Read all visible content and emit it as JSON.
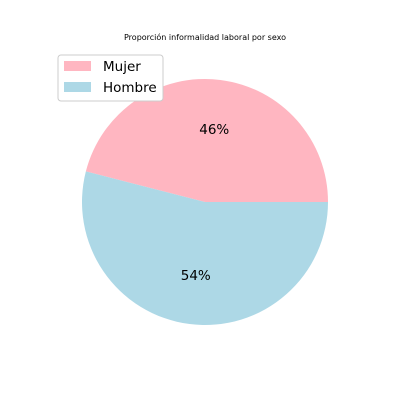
{
  "chart_data": {
    "type": "pie",
    "title": "Proporción informalidad laboral por sexo",
    "slices": [
      {
        "label": "Mujer",
        "value": 46,
        "display": "46%",
        "color": "#ffb6c1"
      },
      {
        "label": "Hombre",
        "value": 54,
        "display": "54%",
        "color": "#add8e6"
      }
    ],
    "start_angle_deg": 0,
    "direction": "counterclockwise",
    "legend": {
      "position": "upper-left",
      "entries": [
        "Mujer",
        "Hombre"
      ]
    }
  }
}
